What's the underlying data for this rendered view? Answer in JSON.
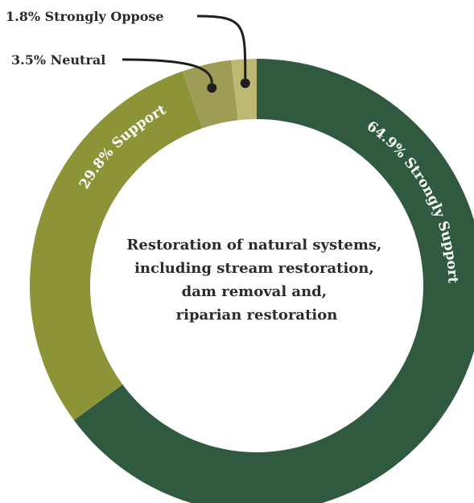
{
  "chart_data": {
    "type": "pie",
    "donut": true,
    "title": "Restoration of natural systems, including stream restoration, dam removal and, riparian restoration",
    "center_lines": [
      "Restoration of natural systems,",
      "including stream restoration,",
      "dam removal and,",
      "riparian restoration"
    ],
    "slices": [
      {
        "label": "Strongly Support",
        "value": 64.9,
        "display": "64.9% Strongly Support",
        "color": "#2f5a40",
        "placement": "arc"
      },
      {
        "label": "Support",
        "value": 29.8,
        "display": "29.8% Support",
        "color": "#8c9437",
        "placement": "arc"
      },
      {
        "label": "Neutral",
        "value": 3.5,
        "display": "3.5% Neutral",
        "color": "#9f9c55",
        "placement": "callout"
      },
      {
        "label": "Strongly Oppose",
        "value": 1.8,
        "display": "1.8% Strongly Oppose",
        "color": "#bdb873",
        "placement": "callout"
      }
    ]
  }
}
